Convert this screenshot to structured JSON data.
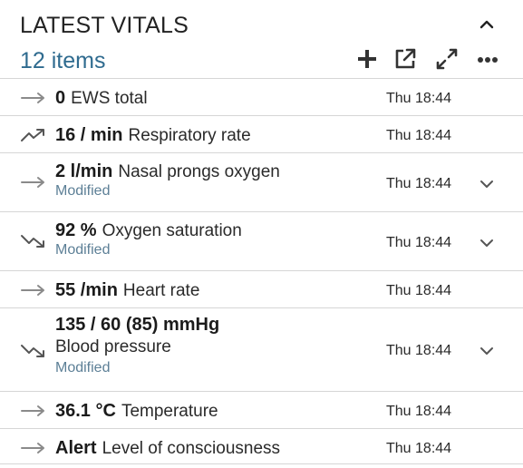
{
  "panel": {
    "title": "LATEST VITALS",
    "count": "12 items",
    "icons": {
      "collapse": "chevron-up-icon",
      "add": "plus-icon",
      "open": "external-link-icon",
      "expand": "expand-icon",
      "more": "more-icon"
    }
  },
  "colors": {
    "accent": "#2f6b8f",
    "modified": "#5c7f96",
    "divider": "#d6d6d6",
    "trend": "#8a8a8a"
  },
  "vitals": [
    {
      "trend": "flat",
      "value": "0",
      "label": "EWS total",
      "time": "Thu 18:44"
    },
    {
      "trend": "up",
      "value": "16 / min",
      "label": "Respiratory rate",
      "time": "Thu 18:44"
    },
    {
      "trend": "flat",
      "value": "2 l/min",
      "label": "Nasal prongs oxygen",
      "status": "Modified",
      "time": "Thu 18:44"
    },
    {
      "trend": "down",
      "value": "92 %",
      "label": "Oxygen saturation",
      "status": "Modified",
      "time": "Thu 18:44"
    },
    {
      "trend": "flat",
      "value": "55 /min",
      "label": "Heart rate",
      "time": "Thu 18:44"
    },
    {
      "trend": "down",
      "value": "135 / 60 (85) mmHg",
      "label": "Blood pressure",
      "status": "Modified",
      "time": "Thu 18:44"
    },
    {
      "trend": "flat",
      "value": "36.1 °C",
      "label": "Temperature",
      "time": "Thu 18:44"
    },
    {
      "trend": "flat",
      "value": "Alert",
      "label": "Level of consciousness",
      "time": "Thu 18:44"
    }
  ]
}
